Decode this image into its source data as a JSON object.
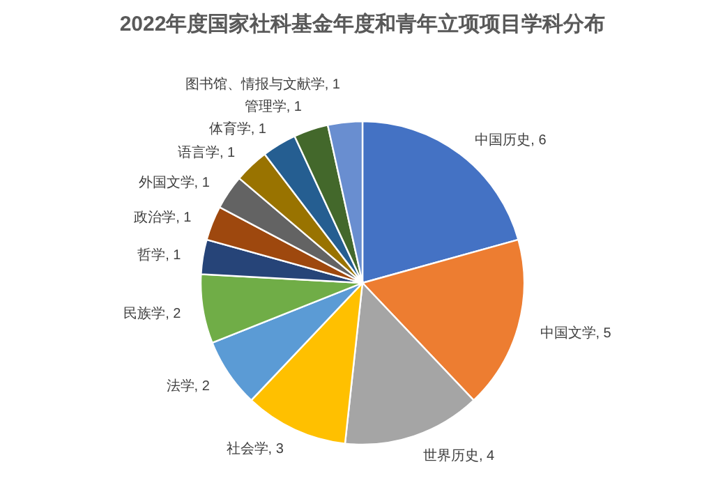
{
  "chart_data": {
    "type": "pie",
    "title": "2022年度国家社科基金年度和青年立项项目学科分布",
    "categories": [
      "中国历史",
      "中国文学",
      "世界历史",
      "社会学",
      "法学",
      "民族学",
      "哲学",
      "政治学",
      "外国文学",
      "语言学",
      "体育学",
      "管理学",
      "图书馆、情报与文献学"
    ],
    "values": [
      6,
      5,
      4,
      3,
      2,
      2,
      1,
      1,
      1,
      1,
      1,
      1,
      1
    ],
    "colors": [
      "#4472c4",
      "#ed7d31",
      "#a5a5a5",
      "#ffc000",
      "#5b9bd5",
      "#70ad47",
      "#264478",
      "#9e480e",
      "#636363",
      "#997300",
      "#255e91",
      "#43682b",
      "#698ed0"
    ],
    "value_labels": [
      ", 6",
      ", 5",
      ", 4",
      ", 3",
      ", 2",
      ", 2",
      ", 1",
      ", 1",
      ", 1",
      ", 1",
      ", 1",
      ", 1",
      ", 1"
    ]
  }
}
